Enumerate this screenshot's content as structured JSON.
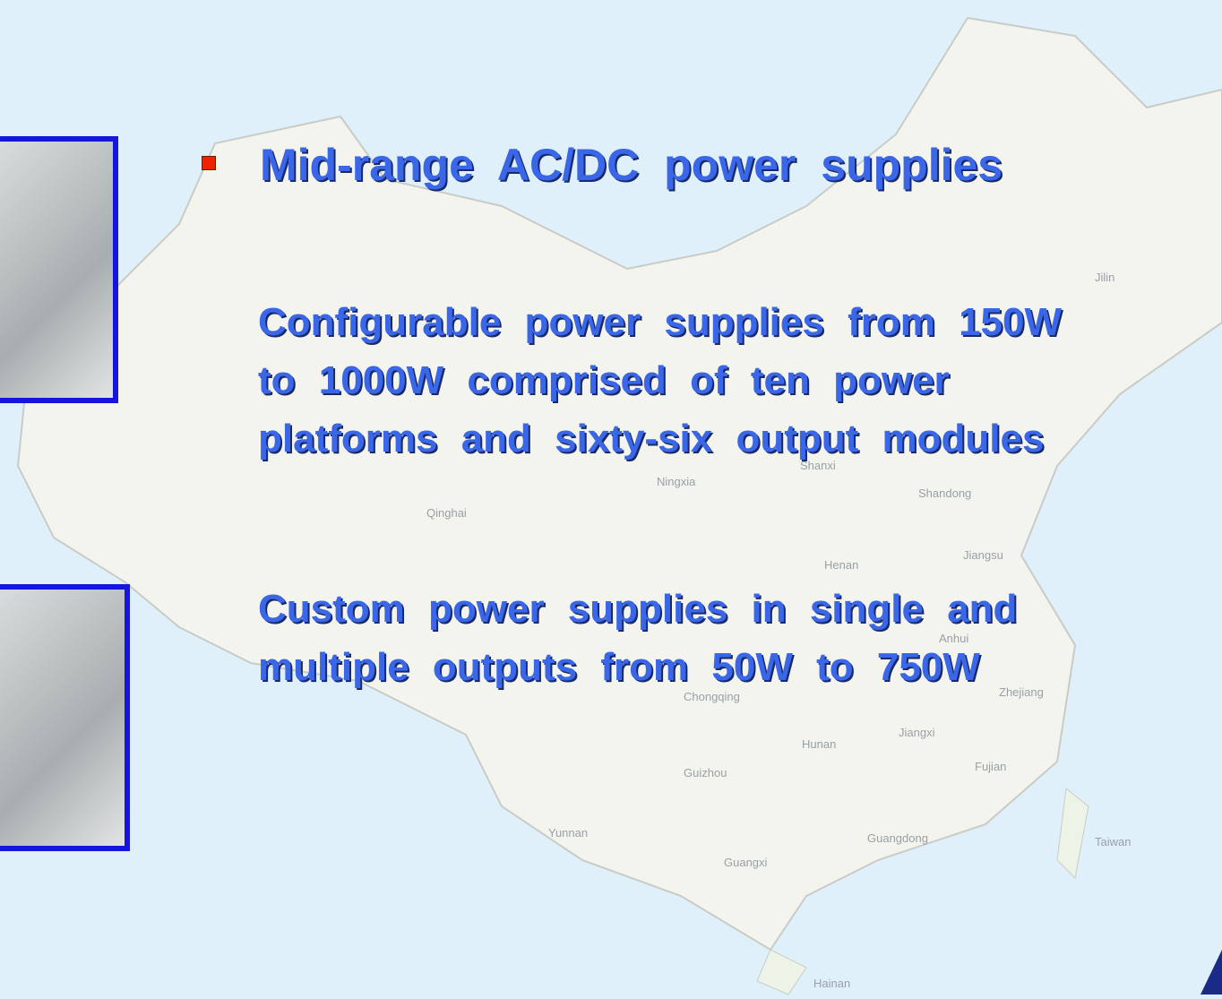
{
  "slide": {
    "bullet": "Mid-range AC/DC power supplies",
    "paragraphs": [
      {
        "lines": [
          "Configurable power supplies from 150W",
          "to 1000W comprised of ten power",
          "platforms and sixty-six output modules"
        ]
      },
      {
        "lines": [
          "Custom power supplies in single and",
          "multiple outputs from 50W to 750W"
        ]
      }
    ],
    "map_labels": [
      "Jilin",
      "Qinghai",
      "Ningxia",
      "Shanxi",
      "Shandong",
      "Henan",
      "Jiangsu",
      "Anhui",
      "Chongqing",
      "Zhejiang",
      "Hunan",
      "Jiangxi",
      "Guizhou",
      "Fujian",
      "Yunnan",
      "Guangdong",
      "Guangxi",
      "Taiwan",
      "Hainan"
    ]
  }
}
